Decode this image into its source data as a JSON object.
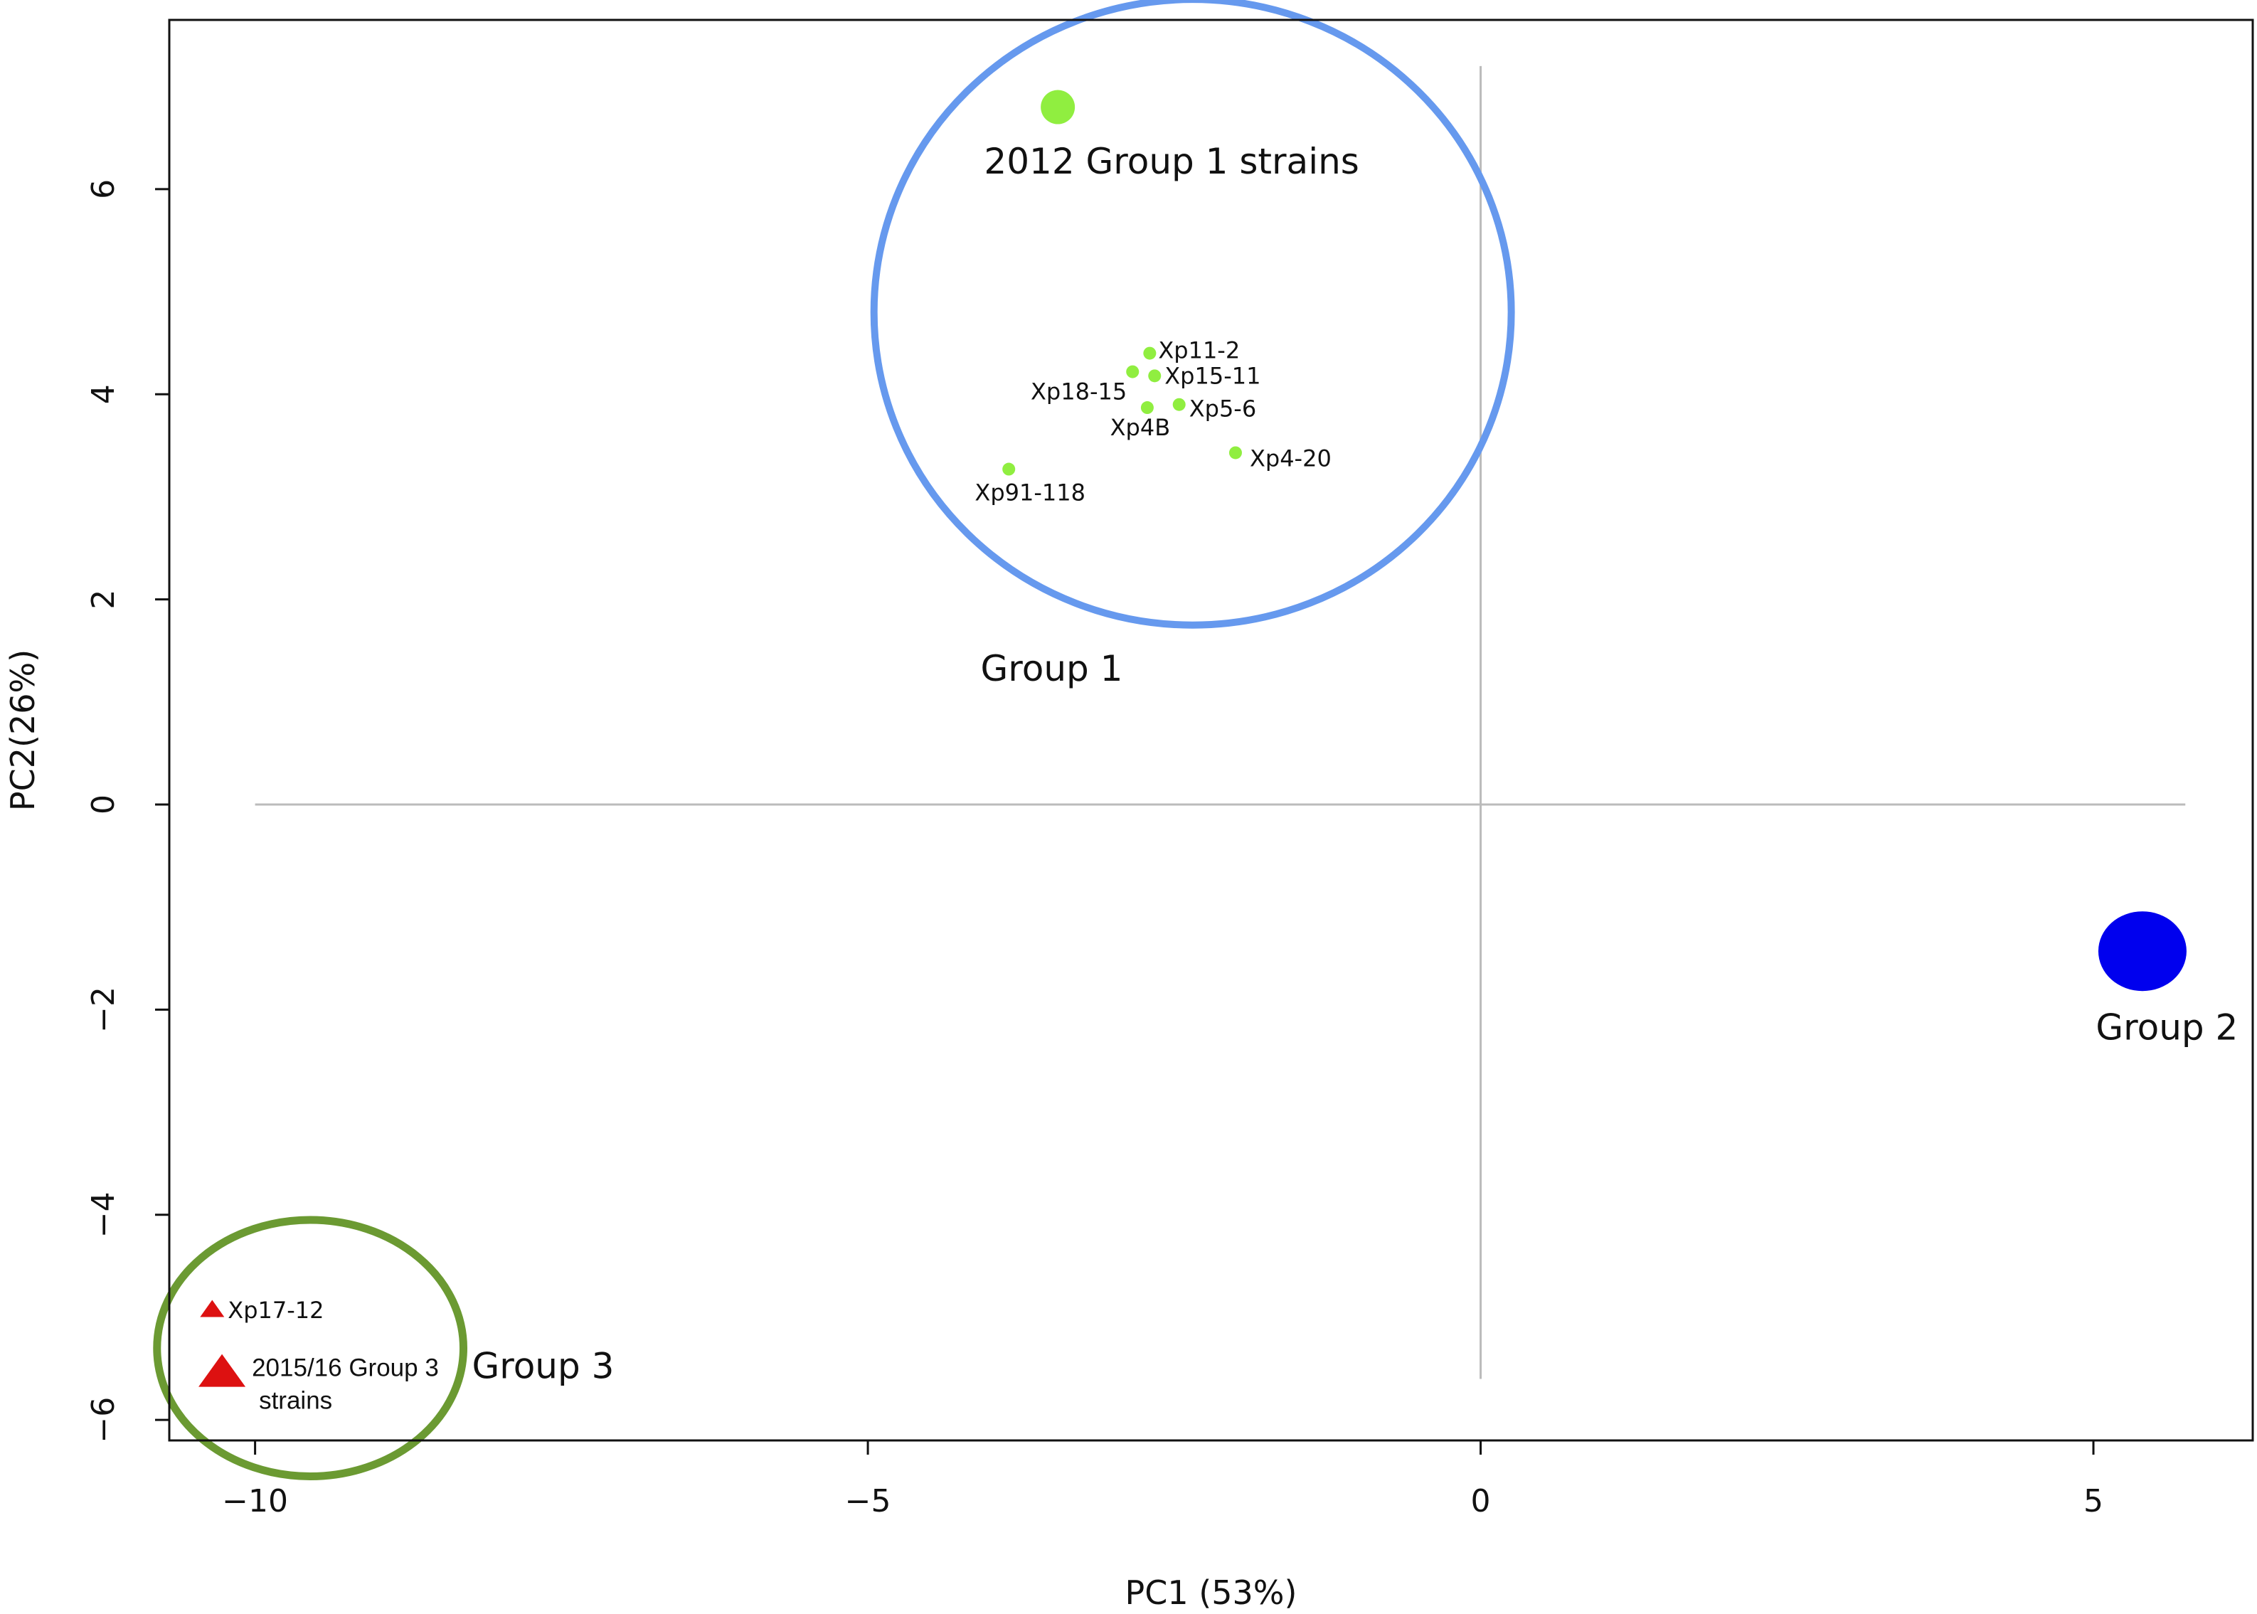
{
  "chart_data": {
    "type": "scatter",
    "title": "",
    "xlabel": "PC1 (53%)",
    "ylabel": "PC2(26%)",
    "xlim": [
      -10.7,
      6.3
    ],
    "ylim": [
      -6.2,
      7.65
    ],
    "xticks": [
      -10,
      -5,
      0,
      5
    ],
    "yticks": [
      -6,
      -4,
      -2,
      0,
      2,
      4,
      6
    ],
    "xtick_labels": [
      "−10",
      "−5",
      "0",
      "5"
    ],
    "ytick_labels": [
      "−6",
      "−4",
      "−2",
      "0",
      "2",
      "4",
      "6"
    ],
    "grid": false,
    "reference_lines": [
      {
        "axis": "x",
        "value": 0,
        "range": [
          -5.6,
          7.2
        ]
      },
      {
        "axis": "y",
        "value": 0,
        "range": [
          -10,
          5.75
        ]
      }
    ],
    "groups": [
      {
        "label": "Group 1",
        "color": "#6699ee",
        "ellipse": {
          "cx": -2.35,
          "cy": 4.8,
          "rx": 2.6,
          "ry": 3.05
        },
        "label_pos": {
          "x": -3.5,
          "y": 1.3
        }
      },
      {
        "label": "Group 2",
        "color": "#0000ee",
        "label_pos": {
          "x": 5.6,
          "y": -2.2
        }
      },
      {
        "label": "Group 3",
        "color": "#6b9a32",
        "ellipse": {
          "cx": -9.55,
          "cy": -5.3,
          "rx": 1.25,
          "ry": 1.25
        },
        "label_pos": {
          "x": -7.65,
          "y": -5.5
        }
      }
    ],
    "series": [
      {
        "marker": "circle",
        "color": "#90ee40",
        "points": [
          {
            "x": -2.7,
            "y": 4.4,
            "label": "Xp11-2"
          },
          {
            "x": -2.66,
            "y": 4.18,
            "label": "Xp15-11"
          },
          {
            "x": -2.84,
            "y": 4.22,
            "label": "Xp18-15"
          },
          {
            "x": -2.46,
            "y": 3.9,
            "label": "Xp5-6"
          },
          {
            "x": -2.72,
            "y": 3.87,
            "label": "Xp4B"
          },
          {
            "x": -2.0,
            "y": 3.43,
            "label": "Xp4-20"
          },
          {
            "x": -3.85,
            "y": 3.27,
            "label": "Xp91-118"
          },
          {
            "x": -3.45,
            "y": 6.8,
            "label": "2012 Group 1 strains",
            "size": "large"
          }
        ]
      },
      {
        "marker": "circle",
        "color": "#0000ee",
        "points": [
          {
            "x": 5.4,
            "y": -1.43,
            "label": "",
            "size": "xlarge"
          }
        ]
      },
      {
        "marker": "triangle",
        "color": "#dd1111",
        "points": [
          {
            "x": -10.35,
            "y": -4.93,
            "label": "Xp17-12"
          },
          {
            "x": -10.27,
            "y": -5.55,
            "label": "2015/16 Group 3 strains",
            "label_lines": [
              "2015/16 Group 3",
              "strains"
            ],
            "size": "large"
          }
        ]
      }
    ]
  }
}
